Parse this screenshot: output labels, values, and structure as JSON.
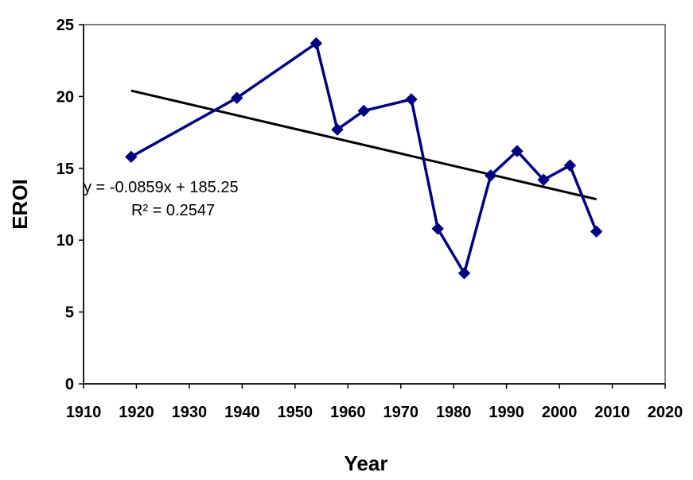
{
  "chart_data": {
    "type": "scatter",
    "xlabel": "Year",
    "ylabel": "EROI",
    "xlim": [
      1910,
      2020
    ],
    "ylim": [
      0,
      25
    ],
    "x_ticks": [
      1910,
      1920,
      1930,
      1940,
      1950,
      1960,
      1970,
      1980,
      1990,
      2000,
      2010,
      2020
    ],
    "y_ticks": [
      0,
      5,
      10,
      15,
      20,
      25
    ],
    "grid": false,
    "series": [
      {
        "marker": "diamond",
        "line": true,
        "color": "#000080",
        "points": [
          {
            "x": 1919,
            "y": 15.8
          },
          {
            "x": 1939,
            "y": 19.9
          },
          {
            "x": 1954,
            "y": 23.7
          },
          {
            "x": 1958,
            "y": 17.7
          },
          {
            "x": 1963,
            "y": 19.0
          },
          {
            "x": 1972,
            "y": 19.8
          },
          {
            "x": 1977,
            "y": 10.8
          },
          {
            "x": 1982,
            "y": 7.7
          },
          {
            "x": 1987,
            "y": 14.5
          },
          {
            "x": 1992,
            "y": 16.2
          },
          {
            "x": 1997,
            "y": 14.2
          },
          {
            "x": 2002,
            "y": 15.2
          },
          {
            "x": 2007,
            "y": 10.6
          }
        ]
      }
    ],
    "trendline": {
      "type": "linear",
      "slope": -0.0859,
      "intercept": 185.25,
      "x_range": [
        1919,
        2007
      ],
      "color": "#000000",
      "equation_text": "y = -0.0859x + 185.25",
      "r2_text": "R² = 0.2547"
    },
    "colors": {
      "plot_border": "#808080",
      "axis": "#000000",
      "series": "#000080",
      "trendline": "#000000"
    }
  }
}
